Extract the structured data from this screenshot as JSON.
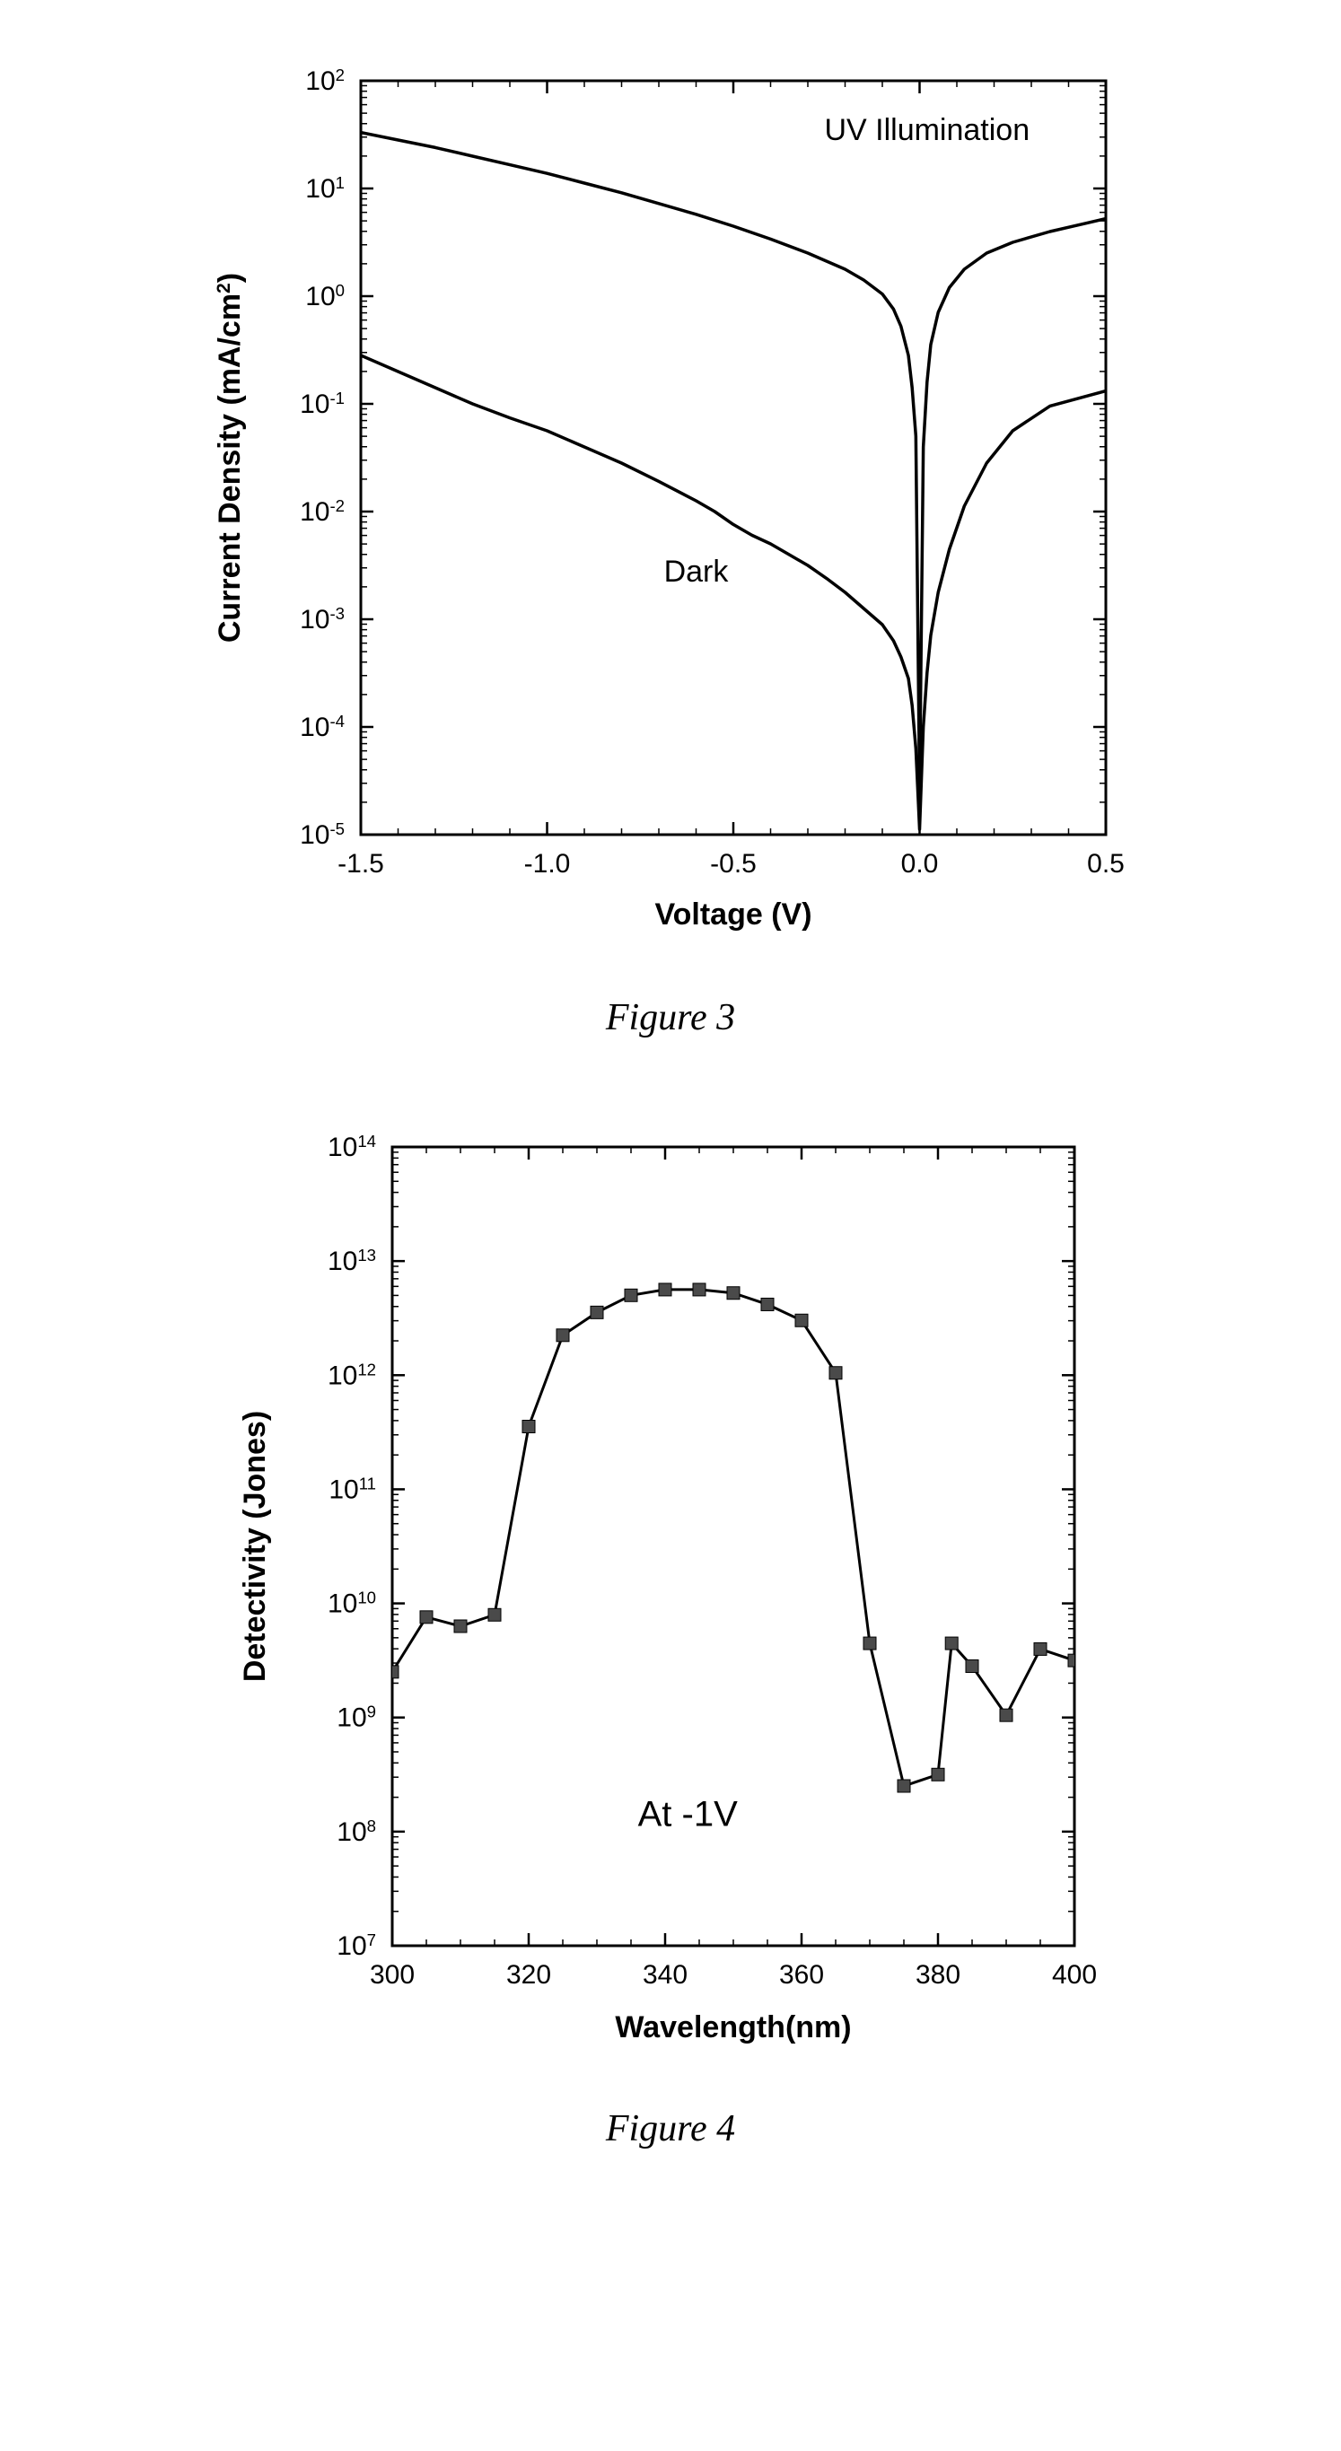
{
  "figure3": {
    "caption": "Figure 3",
    "type": "line",
    "xlabel": "Voltage (V)",
    "ylabel": "Current Density (mA/cm²)",
    "label_fontsize": 34,
    "label_fontweight": "bold",
    "tick_fontsize": 30,
    "background_color": "#ffffff",
    "axis_color": "#000000",
    "line_color": "#000000",
    "line_width": 3.5,
    "yscale": "log",
    "xlim": [
      -1.5,
      0.5
    ],
    "ylim_exp": [
      -5,
      2
    ],
    "xticks": [
      -1.5,
      -1.0,
      -0.5,
      0.0,
      0.5
    ],
    "ytick_exponents": [
      -5,
      -4,
      -3,
      -2,
      -1,
      0,
      1,
      2
    ],
    "annotations": [
      {
        "text": "UV Illumination",
        "x": 0.02,
        "y_exp": 1.45,
        "fontsize": 34
      },
      {
        "text": "Dark",
        "x": -0.6,
        "y_exp": -2.65,
        "fontsize": 34
      }
    ],
    "series": [
      {
        "name": "uv",
        "points": [
          [
            -1.5,
            1.52
          ],
          [
            -1.4,
            1.45
          ],
          [
            -1.3,
            1.38
          ],
          [
            -1.2,
            1.3
          ],
          [
            -1.1,
            1.22
          ],
          [
            -1.0,
            1.14
          ],
          [
            -0.9,
            1.05
          ],
          [
            -0.8,
            0.96
          ],
          [
            -0.7,
            0.86
          ],
          [
            -0.6,
            0.76
          ],
          [
            -0.5,
            0.65
          ],
          [
            -0.4,
            0.53
          ],
          [
            -0.3,
            0.4
          ],
          [
            -0.2,
            0.25
          ],
          [
            -0.15,
            0.15
          ],
          [
            -0.1,
            0.02
          ],
          [
            -0.07,
            -0.12
          ],
          [
            -0.05,
            -0.28
          ],
          [
            -0.03,
            -0.55
          ],
          [
            -0.02,
            -0.85
          ],
          [
            -0.01,
            -1.3
          ],
          [
            0.0,
            -4.6
          ],
          [
            0.01,
            -1.4
          ],
          [
            0.02,
            -0.8
          ],
          [
            0.03,
            -0.45
          ],
          [
            0.05,
            -0.15
          ],
          [
            0.08,
            0.08
          ],
          [
            0.12,
            0.25
          ],
          [
            0.18,
            0.4
          ],
          [
            0.25,
            0.5
          ],
          [
            0.35,
            0.6
          ],
          [
            0.45,
            0.68
          ],
          [
            0.5,
            0.72
          ]
        ]
      },
      {
        "name": "dark",
        "points": [
          [
            -1.5,
            -0.55
          ],
          [
            -1.4,
            -0.7
          ],
          [
            -1.3,
            -0.85
          ],
          [
            -1.2,
            -1.0
          ],
          [
            -1.1,
            -1.13
          ],
          [
            -1.0,
            -1.25
          ],
          [
            -0.9,
            -1.4
          ],
          [
            -0.8,
            -1.55
          ],
          [
            -0.7,
            -1.72
          ],
          [
            -0.6,
            -1.9
          ],
          [
            -0.55,
            -2.0
          ],
          [
            -0.5,
            -2.12
          ],
          [
            -0.45,
            -2.22
          ],
          [
            -0.4,
            -2.3
          ],
          [
            -0.35,
            -2.4
          ],
          [
            -0.3,
            -2.5
          ],
          [
            -0.25,
            -2.62
          ],
          [
            -0.2,
            -2.75
          ],
          [
            -0.15,
            -2.9
          ],
          [
            -0.1,
            -3.05
          ],
          [
            -0.07,
            -3.2
          ],
          [
            -0.05,
            -3.35
          ],
          [
            -0.03,
            -3.55
          ],
          [
            -0.02,
            -3.8
          ],
          [
            -0.01,
            -4.2
          ],
          [
            0.0,
            -4.95
          ],
          [
            0.01,
            -4.0
          ],
          [
            0.02,
            -3.5
          ],
          [
            0.03,
            -3.15
          ],
          [
            0.05,
            -2.75
          ],
          [
            0.08,
            -2.35
          ],
          [
            0.12,
            -1.95
          ],
          [
            0.18,
            -1.55
          ],
          [
            0.25,
            -1.25
          ],
          [
            0.35,
            -1.02
          ],
          [
            0.5,
            -0.88
          ]
        ]
      }
    ]
  },
  "figure4": {
    "caption": "Figure 4",
    "type": "line+marker",
    "xlabel": "Wavelength(nm)",
    "ylabel": "Detectivity (Jones)",
    "label_fontsize": 34,
    "label_fontweight": "bold",
    "tick_fontsize": 30,
    "background_color": "#ffffff",
    "axis_color": "#000000",
    "line_color": "#000000",
    "marker_color": "#4a4a4a",
    "marker_size": 14,
    "marker_style": "square",
    "line_width": 3,
    "yscale": "log",
    "xlim": [
      300,
      400
    ],
    "ylim_exp": [
      7,
      14
    ],
    "xticks": [
      300,
      320,
      340,
      360,
      380,
      400
    ],
    "ytick_exponents": [
      7,
      8,
      9,
      10,
      11,
      12,
      13,
      14
    ],
    "annotation": {
      "text": "At -1V",
      "x": 336,
      "y_exp": 8.05,
      "fontsize": 40
    },
    "series": {
      "name": "detectivity",
      "points": [
        [
          300,
          9.4
        ],
        [
          305,
          9.88
        ],
        [
          310,
          9.8
        ],
        [
          315,
          9.9
        ],
        [
          320,
          11.55
        ],
        [
          325,
          12.35
        ],
        [
          330,
          12.55
        ],
        [
          335,
          12.7
        ],
        [
          340,
          12.75
        ],
        [
          345,
          12.75
        ],
        [
          350,
          12.72
        ],
        [
          355,
          12.62
        ],
        [
          360,
          12.48
        ],
        [
          365,
          12.02
        ],
        [
          370,
          9.65
        ],
        [
          375,
          8.4
        ],
        [
          380,
          8.5
        ],
        [
          382,
          9.65
        ],
        [
          385,
          9.45
        ],
        [
          390,
          9.02
        ],
        [
          395,
          9.6
        ],
        [
          400,
          9.5
        ]
      ]
    }
  }
}
